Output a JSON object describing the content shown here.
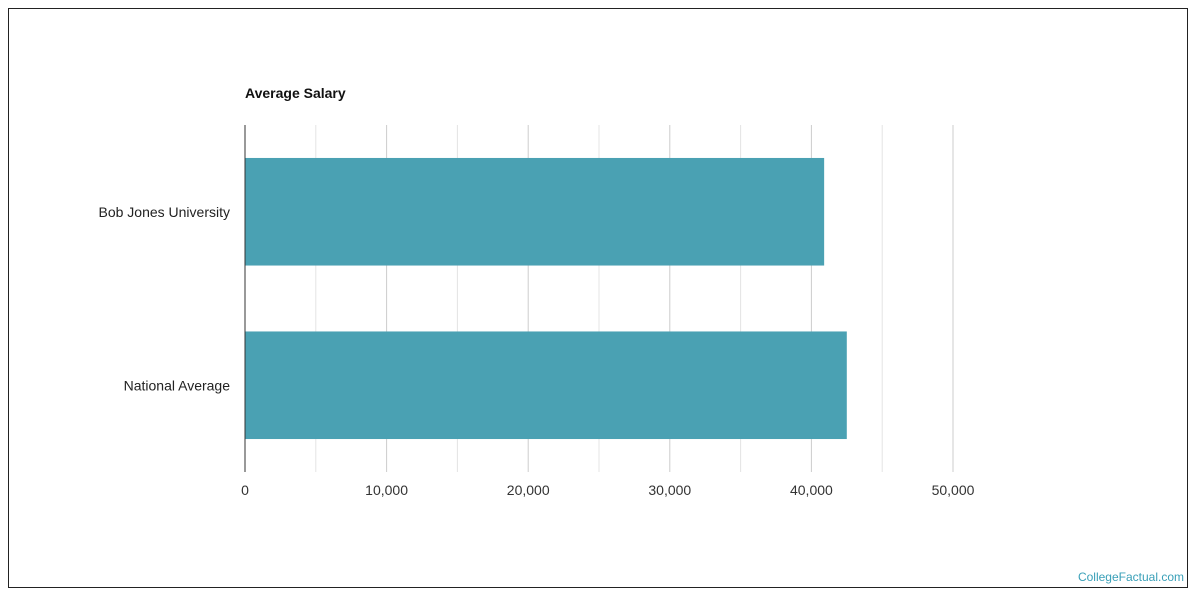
{
  "chart_data": {
    "type": "bar",
    "orientation": "horizontal",
    "title": "Average Salary",
    "categories": [
      "Bob Jones University",
      "National Average"
    ],
    "values": [
      40900,
      42500
    ],
    "xlim": [
      0,
      50000
    ],
    "xticks": [
      0,
      10000,
      20000,
      30000,
      40000,
      50000
    ],
    "xtick_labels": [
      "0",
      "10,000",
      "20,000",
      "30,000",
      "40,000",
      "50,000"
    ],
    "grid": true,
    "bar_color": "#4aa1b3"
  },
  "watermark": "CollegeFactual.com"
}
